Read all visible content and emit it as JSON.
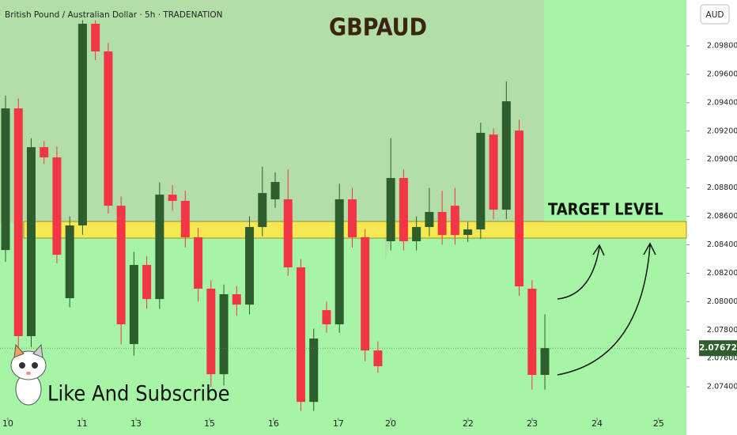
{
  "chart_data": {
    "type": "candlestick",
    "title": "GBPAUD",
    "subtitle": "British Pound / Australian Dollar · 5h · TRADENATION",
    "currency": "AUD",
    "watermark": "Like And Subscribe",
    "up_color": "#2e5e2e",
    "down_color": "#f23645",
    "open": [
      2.08363,
      2.0936,
      2.07757,
      2.09087,
      2.09015,
      2.08024,
      2.08536,
      2.09956,
      2.09761,
      2.08675,
      2.07701,
      2.08258,
      2.08018,
      2.08753,
      2.08709,
      2.08453,
      2.08091,
      2.07489,
      2.08052,
      2.07979,
      2.08525,
      2.0872,
      2.0872,
      2.08241,
      2.07294,
      2.0794,
      2.0784,
      2.0872,
      2.08453,
      2.07656,
      2.08425,
      2.0887,
      2.08425,
      2.08525,
      2.08631,
      2.08675,
      2.08469,
      2.08508,
      2.09176,
      2.08647,
      2.09204,
      2.08091,
      2.07484
    ],
    "high": [
      2.0945,
      2.0943,
      2.0915,
      2.0913,
      2.0909,
      2.086,
      2.0998,
      2.0998,
      2.0982,
      2.0874,
      2.0835,
      2.0832,
      2.0884,
      2.0882,
      2.0878,
      2.0852,
      2.0815,
      2.0812,
      2.0811,
      2.086,
      2.0895,
      2.0891,
      2.0893,
      2.083,
      2.0781,
      2.08,
      2.0883,
      2.088,
      2.0851,
      2.0772,
      2.0915,
      2.0893,
      2.086,
      2.088,
      2.0878,
      2.088,
      2.0856,
      2.0926,
      2.0922,
      2.0955,
      2.0928,
      2.0815,
      2.0791
    ],
    "low": [
      2.0828,
      2.0767,
      2.0768,
      2.0897,
      2.0827,
      2.0796,
      2.0847,
      2.097,
      2.0862,
      2.077,
      2.0762,
      2.0795,
      2.0795,
      2.0864,
      2.0838,
      2.08,
      2.074,
      2.0741,
      2.079,
      2.0791,
      2.0846,
      2.0866,
      2.0818,
      2.0723,
      2.0723,
      2.0778,
      2.0778,
      2.0838,
      2.0758,
      2.075,
      2.0836,
      2.0836,
      2.0836,
      2.0846,
      2.084,
      2.084,
      2.0842,
      2.0844,
      2.0858,
      2.0858,
      2.0804,
      2.0738,
      2.0738
    ],
    "close": [
      2.0936,
      2.07757,
      2.09087,
      2.09015,
      2.0833,
      2.08536,
      2.09956,
      2.09761,
      2.08675,
      2.0784,
      2.08258,
      2.08018,
      2.08753,
      2.08709,
      2.08453,
      2.08091,
      2.07489,
      2.08052,
      2.07979,
      2.08525,
      2.08764,
      2.08842,
      2.08241,
      2.07294,
      2.0774,
      2.0784,
      2.0872,
      2.08453,
      2.07656,
      2.07545,
      2.0887,
      2.08425,
      2.08525,
      2.08631,
      2.08469,
      2.08469,
      2.08508,
      2.09188,
      2.08647,
      2.0941,
      2.08107,
      2.07484,
      2.07673
    ],
    "xlim": [
      -0.43,
      53.02
    ],
    "xticks": [
      {
        "value": 0.18,
        "label": "10"
      },
      {
        "value": 5.97,
        "label": "11"
      },
      {
        "value": 10.16,
        "label": "13"
      },
      {
        "value": 15.89,
        "label": "15"
      },
      {
        "value": 20.87,
        "label": "16"
      },
      {
        "value": 25.92,
        "label": "17"
      },
      {
        "value": 29.99,
        "label": "20"
      },
      {
        "value": 36.02,
        "label": "22"
      },
      {
        "value": 41.01,
        "label": "23"
      },
      {
        "value": 46.06,
        "label": "24"
      },
      {
        "value": 50.86,
        "label": "25"
      }
    ],
    "ylim": [
      2.07228,
      2.10123
    ],
    "yticks": [
      {
        "value": 2.098,
        "label": "2.09800"
      },
      {
        "value": 2.096,
        "label": "2.09600"
      },
      {
        "value": 2.094,
        "label": "2.09400"
      },
      {
        "value": 2.092,
        "label": "2.09200"
      },
      {
        "value": 2.09,
        "label": "2.09000"
      },
      {
        "value": 2.088,
        "label": "2.08800"
      },
      {
        "value": 2.086,
        "label": "2.08600"
      },
      {
        "value": 2.084,
        "label": "2.08400"
      },
      {
        "value": 2.082,
        "label": "2.08200"
      },
      {
        "value": 2.08,
        "label": "2.08000"
      },
      {
        "value": 2.078,
        "label": "2.07800"
      },
      {
        "value": 2.076,
        "label": "2.07600"
      },
      {
        "value": 2.074,
        "label": "2.07400"
      }
    ],
    "last_price": {
      "value": 2.07672,
      "label": "2.07672"
    },
    "target_zone": {
      "low": 2.08447,
      "high": 2.08564,
      "label": "TARGET LEVEL"
    }
  }
}
